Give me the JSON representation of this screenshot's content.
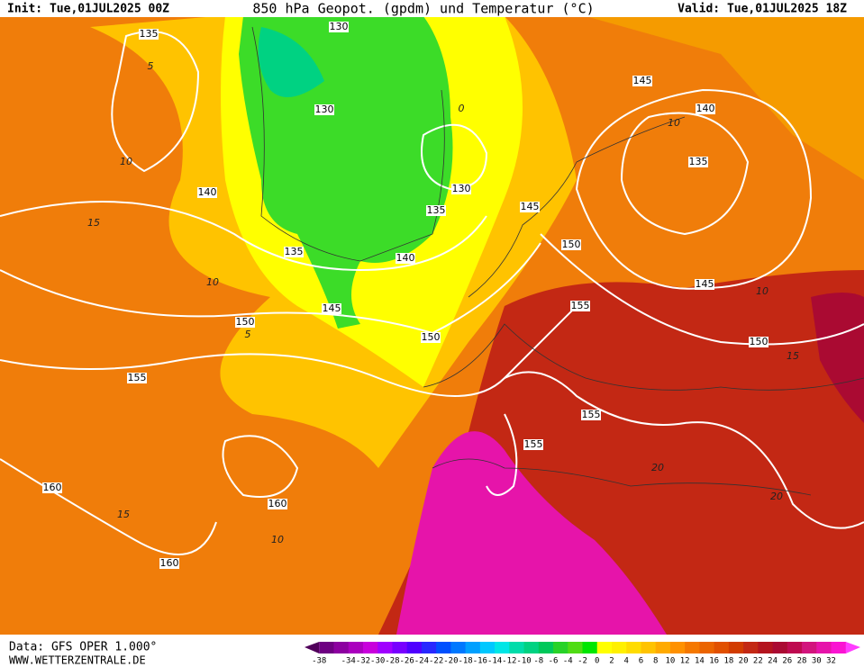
{
  "header": {
    "init": "Init: Tue,01JUL2025 00Z",
    "title": "850 hPa Geopot. (gpdm) und Temperatur (°C)",
    "valid": "Valid: Tue,01JUL2025 18Z"
  },
  "footer": {
    "data_source": "Data: GFS OPER 1.000°",
    "website": "WWW.WETTERZENTRALE.DE"
  },
  "colorbar": {
    "labels": [
      -38,
      -34,
      -32,
      -30,
      -28,
      -26,
      -24,
      -22,
      -20,
      -18,
      -16,
      -14,
      -12,
      -10,
      -8,
      -6,
      -4,
      -2,
      0,
      2,
      4,
      6,
      8,
      10,
      12,
      14,
      16,
      18,
      20,
      22,
      24,
      26,
      28,
      30,
      32
    ],
    "colors": [
      "#50005a",
      "#6e0082",
      "#8c00a0",
      "#aa00be",
      "#c800dc",
      "#a000ff",
      "#7800ff",
      "#5000ff",
      "#2828ff",
      "#0050ff",
      "#0078ff",
      "#00a0ff",
      "#00c8ff",
      "#00e6e6",
      "#00dcaa",
      "#00d282",
      "#00c85a",
      "#28d228",
      "#50dc14",
      "#00e600",
      "#ffff00",
      "#fff000",
      "#ffdc00",
      "#ffc300",
      "#ffaa00",
      "#ff9100",
      "#f57800",
      "#eb6400",
      "#e15000",
      "#d23c00",
      "#c32814",
      "#b4141e",
      "#aa0a32",
      "#be0a50",
      "#d2147d",
      "#e614aa",
      "#fa14d2",
      "#ff3cff"
    ]
  },
  "geopotential_labels": [
    "135",
    "130",
    "130",
    "130",
    "135",
    "140",
    "135",
    "140",
    "145",
    "150",
    "150",
    "155",
    "155",
    "155",
    "155",
    "160",
    "160",
    "160",
    "145",
    "150",
    "140",
    "135",
    "145",
    "150",
    "145"
  ],
  "temperature_labels": [
    "5",
    "10",
    "15",
    "10",
    "5",
    "10",
    "10",
    "15",
    "20",
    "20",
    "15",
    "10",
    "0"
  ]
}
